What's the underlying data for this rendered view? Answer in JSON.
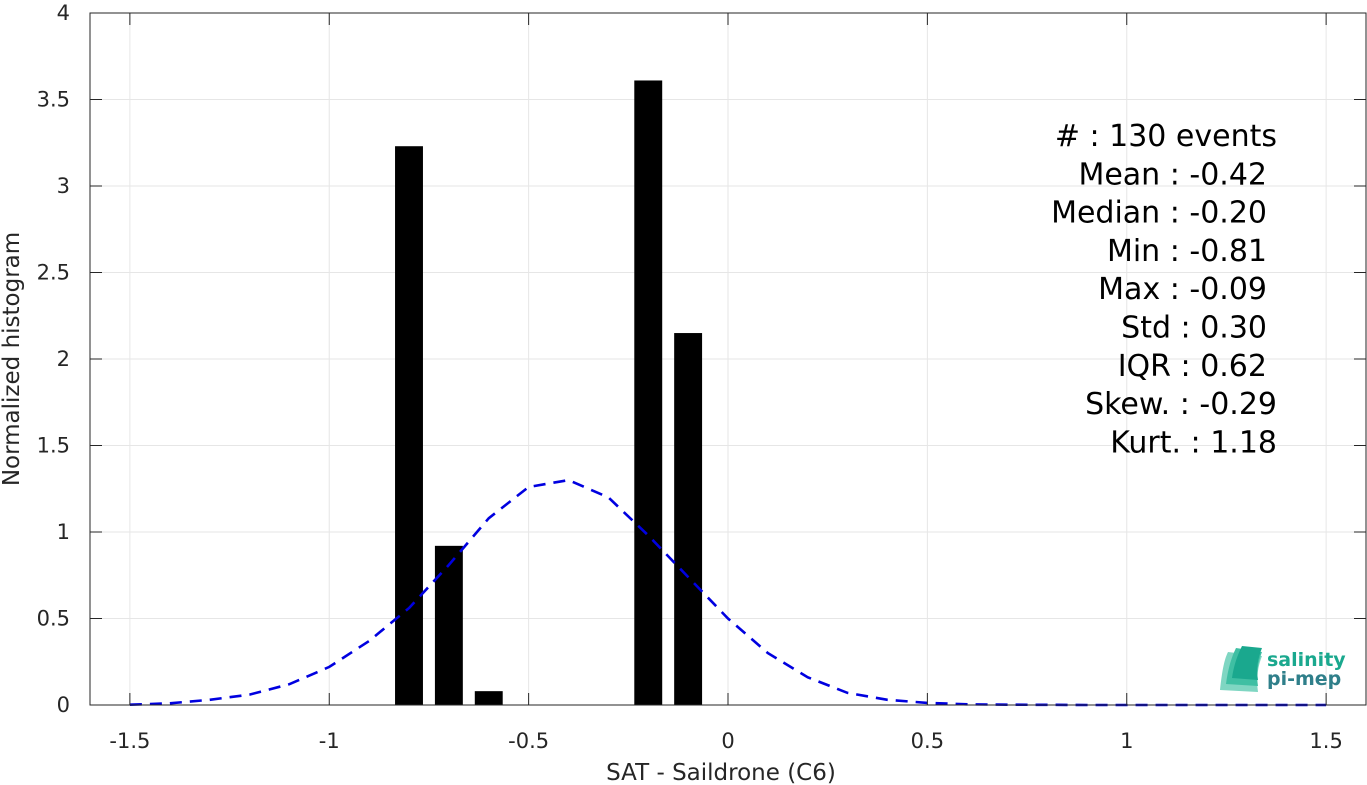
{
  "chart_data": {
    "type": "bar",
    "xlabel": "SAT - Saildrone (C6)",
    "ylabel": "Normalized histogram",
    "xlim": [
      -1.6,
      1.6
    ],
    "ylim": [
      0,
      4
    ],
    "grid": true,
    "xticks": [
      -1.5,
      -1,
      -0.5,
      0,
      0.5,
      1,
      1.5
    ],
    "xtick_labels": [
      "-1.5",
      "-1",
      "-0.5",
      "0",
      "0.5",
      "1",
      "1.5"
    ],
    "yticks": [
      0,
      0.5,
      1,
      1.5,
      2,
      2.5,
      3,
      3.5,
      4
    ],
    "ytick_labels": [
      "0",
      "0.5",
      "1",
      "1.5",
      "2",
      "2.5",
      "3",
      "3.5",
      "4"
    ],
    "bar_width": 0.07,
    "bars": [
      {
        "x": -0.8,
        "value": 3.23
      },
      {
        "x": -0.7,
        "value": 0.92
      },
      {
        "x": -0.6,
        "value": 0.08
      },
      {
        "x": -0.2,
        "value": 3.61
      },
      {
        "x": -0.1,
        "value": 2.15
      }
    ],
    "bar_color": "#000000",
    "fit_curve": {
      "style": "dashed",
      "color": "#0000e0",
      "x": [
        -1.5,
        -1.4,
        -1.3,
        -1.2,
        -1.1,
        -1.0,
        -0.9,
        -0.8,
        -0.7,
        -0.6,
        -0.5,
        -0.4,
        -0.3,
        -0.2,
        -0.1,
        0.0,
        0.1,
        0.2,
        0.3,
        0.4,
        0.5,
        0.6,
        0.7,
        0.8,
        0.9,
        1.0,
        1.1,
        1.2,
        1.3,
        1.4,
        1.5
      ],
      "y": [
        0.002,
        0.01,
        0.03,
        0.06,
        0.12,
        0.22,
        0.37,
        0.56,
        0.81,
        1.08,
        1.26,
        1.3,
        1.2,
        0.98,
        0.74,
        0.5,
        0.3,
        0.16,
        0.07,
        0.03,
        0.012,
        0.004,
        0.002,
        0.001,
        0.0,
        0.0,
        0.0,
        0.0,
        0.0,
        0.0,
        0.0
      ]
    },
    "stats": [
      "#  : 130 events",
      "Mean : -0.42",
      "Median : -0.20",
      "Min : -0.81",
      "Max : -0.09",
      "Std : 0.30",
      "IQR : 0.62",
      "Skew. : -0.29",
      "Kurt. : 1.18"
    ]
  },
  "logo": {
    "line1": "salinity",
    "line2": "pi-mep",
    "color_top": "#1aa88e",
    "color_bottom": "#2f7f8a"
  }
}
